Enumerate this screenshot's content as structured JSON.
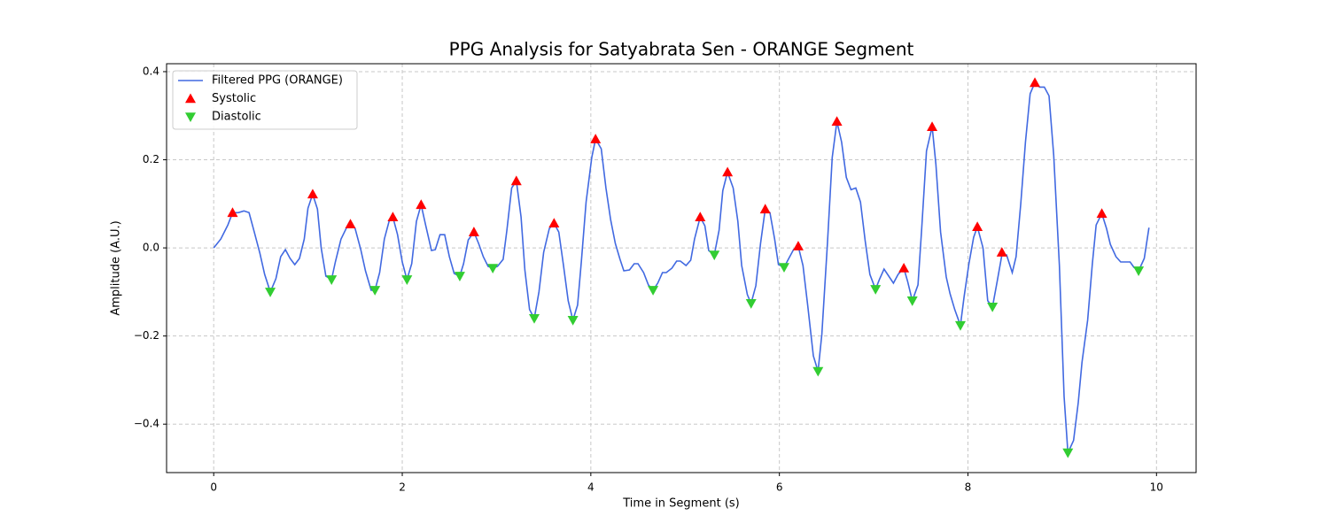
{
  "chart_data": {
    "type": "line",
    "title": "PPG Analysis for Satyabrata Sen - ORANGE Segment",
    "xlabel": "Time in Segment (s)",
    "ylabel": "Amplitude (A.U.)",
    "xlim": [
      -0.5,
      10.42
    ],
    "ylim": [
      -0.51,
      0.418
    ],
    "xticks": [
      0,
      2,
      4,
      6,
      8,
      10
    ],
    "yticks": [
      {
        "value": -0.4,
        "label": "−0.4"
      },
      {
        "value": -0.2,
        "label": "−0.2"
      },
      {
        "value": 0,
        "label": "0.0"
      },
      0.2,
      0.4
    ],
    "grid": true,
    "legend": "upper left",
    "series": [
      {
        "name": "Filtered PPG (ORANGE)",
        "type": "line",
        "color": "#4169e1",
        "x": [
          0,
          0.075,
          0.15,
          0.2,
          0.26,
          0.32,
          0.375,
          0.43,
          0.49,
          0.54,
          0.6,
          0.66,
          0.71,
          0.76,
          0.81,
          0.86,
          0.91,
          0.96,
          1.0,
          1.05,
          1.1,
          1.14,
          1.19,
          1.25,
          1.29,
          1.35,
          1.41,
          1.45,
          1.5,
          1.56,
          1.61,
          1.67,
          1.71,
          1.76,
          1.81,
          1.86,
          1.9,
          1.95,
          2.0,
          2.05,
          2.1,
          2.15,
          2.2,
          2.25,
          2.31,
          2.35,
          2.4,
          2.45,
          2.5,
          2.55,
          2.61,
          2.65,
          2.7,
          2.76,
          2.81,
          2.86,
          2.91,
          2.96,
          3.01,
          3.07,
          3.11,
          3.16,
          3.21,
          3.26,
          3.3,
          3.35,
          3.4,
          3.45,
          3.5,
          3.56,
          3.61,
          3.66,
          3.71,
          3.76,
          3.81,
          3.86,
          3.9,
          3.95,
          4.01,
          4.05,
          4.11,
          4.16,
          4.21,
          4.26,
          4.31,
          4.35,
          4.41,
          4.46,
          4.5,
          4.56,
          4.61,
          4.66,
          4.71,
          4.76,
          4.8,
          4.86,
          4.91,
          4.95,
          5.01,
          5.06,
          5.1,
          5.16,
          5.21,
          5.25,
          5.31,
          5.36,
          5.4,
          5.45,
          5.51,
          5.56,
          5.6,
          5.66,
          5.7,
          5.75,
          5.8,
          5.85,
          5.9,
          5.95,
          5.99,
          6.05,
          6.1,
          6.15,
          6.2,
          6.25,
          6.3,
          6.36,
          6.41,
          6.45,
          6.51,
          6.56,
          6.61,
          6.66,
          6.71,
          6.76,
          6.81,
          6.86,
          6.91,
          6.96,
          7.02,
          7.06,
          7.11,
          7.16,
          7.21,
          7.26,
          7.32,
          7.36,
          7.41,
          7.47,
          7.51,
          7.56,
          7.62,
          7.66,
          7.71,
          7.77,
          7.81,
          7.86,
          7.92,
          7.96,
          8.01,
          8.06,
          8.1,
          8.16,
          8.21,
          8.26,
          8.31,
          8.36,
          8.41,
          8.47,
          8.51,
          8.56,
          8.61,
          8.66,
          8.71,
          8.76,
          8.81,
          8.86,
          8.91,
          8.97,
          9.02,
          9.06,
          9.12,
          9.17,
          9.21,
          9.27,
          9.32,
          9.36,
          9.42,
          9.47,
          9.51,
          9.57,
          9.62,
          9.66,
          9.72,
          9.76,
          9.81,
          9.87,
          9.92
        ],
        "values": [
          0,
          0.02,
          0.052,
          0.08,
          0.08,
          0.084,
          0.08,
          0.036,
          -0.012,
          -0.06,
          -0.1,
          -0.07,
          -0.02,
          -0.004,
          -0.024,
          -0.038,
          -0.024,
          0.02,
          0.09,
          0.122,
          0.088,
          0,
          -0.064,
          -0.072,
          -0.032,
          0.02,
          0.046,
          0.054,
          0.044,
          -0.004,
          -0.052,
          -0.096,
          -0.096,
          -0.056,
          0.02,
          0.06,
          0.07,
          0.03,
          -0.032,
          -0.072,
          -0.036,
          0.06,
          0.098,
          0.05,
          -0.006,
          -0.004,
          0.03,
          0.03,
          -0.02,
          -0.058,
          -0.064,
          -0.036,
          0.018,
          0.036,
          0.01,
          -0.02,
          -0.042,
          -0.046,
          -0.042,
          -0.026,
          0.04,
          0.136,
          0.152,
          0.07,
          -0.05,
          -0.14,
          -0.16,
          -0.1,
          -0.01,
          0.044,
          0.056,
          0.036,
          -0.04,
          -0.12,
          -0.164,
          -0.13,
          -0.03,
          0.104,
          0.205,
          0.247,
          0.225,
          0.136,
          0.064,
          0.01,
          -0.026,
          -0.052,
          -0.05,
          -0.036,
          -0.036,
          -0.056,
          -0.084,
          -0.096,
          -0.08,
          -0.056,
          -0.056,
          -0.046,
          -0.03,
          -0.03,
          -0.04,
          -0.028,
          0.02,
          0.07,
          0.05,
          -0.006,
          -0.016,
          0.04,
          0.13,
          0.172,
          0.136,
          0.06,
          -0.04,
          -0.106,
          -0.126,
          -0.086,
          0.01,
          0.088,
          0.08,
          0.02,
          -0.038,
          -0.044,
          -0.024,
          -0.004,
          0.004,
          -0.04,
          -0.13,
          -0.245,
          -0.28,
          -0.196,
          0.01,
          0.205,
          0.287,
          0.24,
          0.16,
          0.132,
          0.136,
          0.104,
          0.016,
          -0.06,
          -0.094,
          -0.072,
          -0.048,
          -0.064,
          -0.08,
          -0.06,
          -0.046,
          -0.076,
          -0.12,
          -0.084,
          0.044,
          0.22,
          0.275,
          0.19,
          0.036,
          -0.066,
          -0.104,
          -0.14,
          -0.176,
          -0.11,
          -0.036,
          0.024,
          0.048,
          0,
          -0.12,
          -0.134,
          -0.076,
          -0.016,
          -0.016,
          -0.056,
          -0.02,
          0.1,
          0.24,
          0.35,
          0.375,
          0.365,
          0.365,
          0.345,
          0.21,
          -0.04,
          -0.337,
          -0.465,
          -0.437,
          -0.351,
          -0.26,
          -0.164,
          -0.036,
          0.052,
          0.078,
          0.044,
          0.008,
          -0.02,
          -0.032,
          -0.032,
          -0.032,
          -0.044,
          -0.052,
          -0.024,
          0.046
        ]
      },
      {
        "name": "Systolic",
        "type": "scatter",
        "marker": "up",
        "color": "#ff0000",
        "x": [
          0.2,
          1.05,
          1.45,
          1.9,
          2.2,
          2.76,
          3.21,
          3.61,
          4.05,
          5.16,
          5.45,
          5.85,
          6.2,
          6.61,
          7.32,
          7.62,
          8.1,
          8.36,
          8.71,
          9.42
        ],
        "values": [
          0.08,
          0.122,
          0.054,
          0.07,
          0.098,
          0.036,
          0.152,
          0.056,
          0.247,
          0.07,
          0.172,
          0.088,
          0.004,
          0.287,
          -0.046,
          0.275,
          0.048,
          -0.01,
          0.375,
          0.078
        ]
      },
      {
        "name": "Diastolic",
        "type": "scatter",
        "marker": "down",
        "color": "#32cd32",
        "x": [
          0.6,
          1.25,
          1.71,
          2.05,
          2.61,
          2.96,
          3.4,
          3.81,
          4.66,
          5.31,
          5.7,
          6.05,
          6.41,
          7.02,
          7.41,
          7.92,
          8.26,
          9.06,
          9.81
        ],
        "values": [
          -0.1,
          -0.072,
          -0.096,
          -0.072,
          -0.064,
          -0.046,
          -0.16,
          -0.164,
          -0.096,
          -0.016,
          -0.126,
          -0.044,
          -0.28,
          -0.094,
          -0.12,
          -0.176,
          -0.134,
          -0.465,
          -0.052
        ]
      }
    ]
  }
}
